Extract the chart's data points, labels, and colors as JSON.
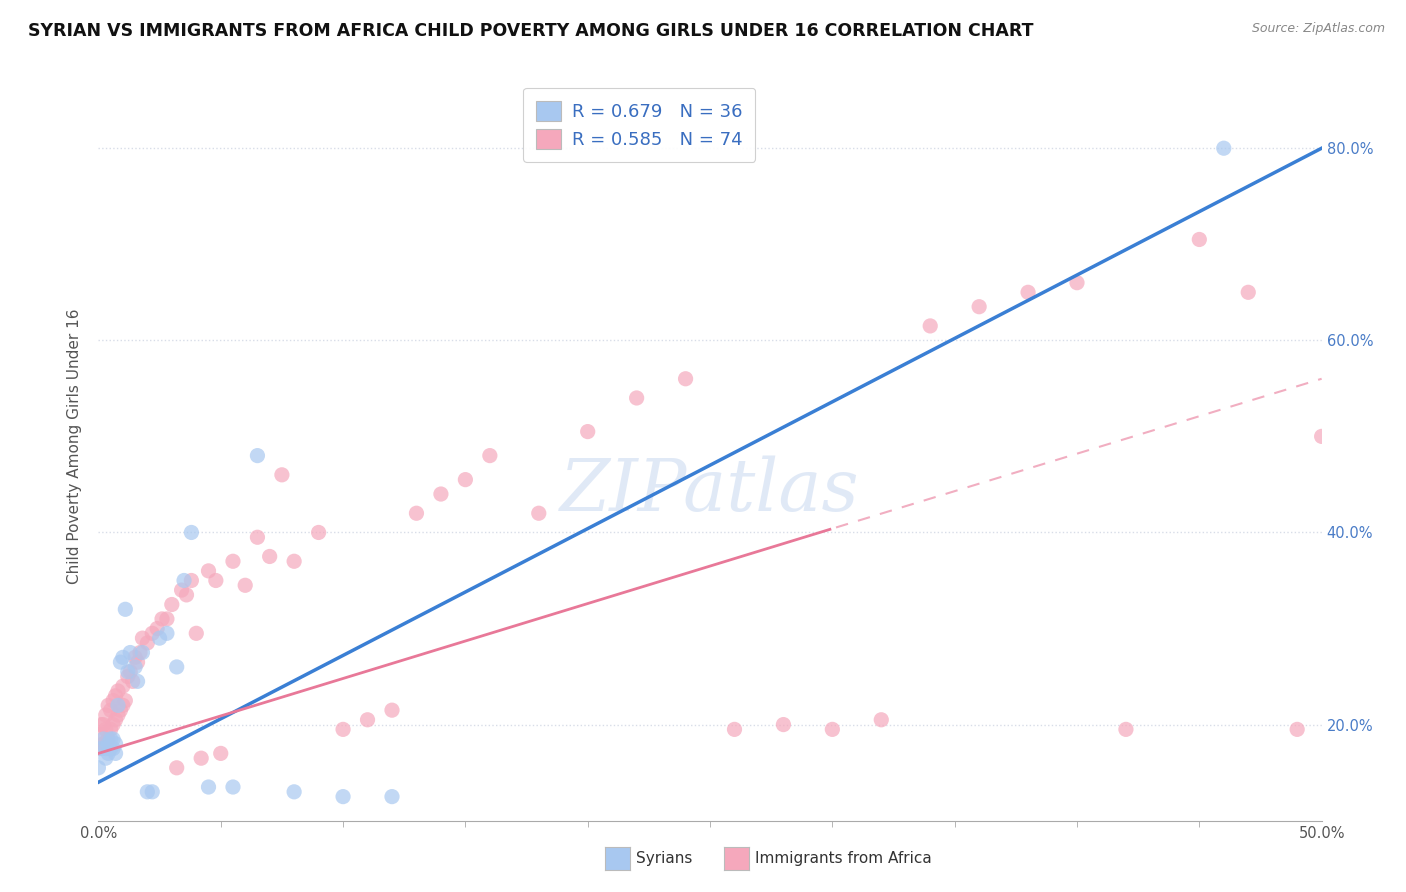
{
  "title": "SYRIAN VS IMMIGRANTS FROM AFRICA CHILD POVERTY AMONG GIRLS UNDER 16 CORRELATION CHART",
  "source": "Source: ZipAtlas.com",
  "ylabel": "Child Poverty Among Girls Under 16",
  "legend_syrian": "R = 0.679   N = 36",
  "legend_africa": "R = 0.585   N = 74",
  "syrian_color": "#a8c8f0",
  "africa_color": "#f5a8bc",
  "syrian_line_color": "#3a7fd4",
  "africa_line_color": "#e87898",
  "watermark_text": "ZIPatlas",
  "background_color": "#ffffff",
  "grid_color": "#d8dde8",
  "title_fontsize": 12.5,
  "axis_label_fontsize": 11,
  "tick_fontsize": 10.5,
  "xlim": [
    0.0,
    0.5
  ],
  "ylim": [
    0.1,
    0.88
  ],
  "syrian_scatter_x": [
    0.0,
    0.001,
    0.002,
    0.003,
    0.003,
    0.004,
    0.004,
    0.005,
    0.005,
    0.006,
    0.006,
    0.007,
    0.007,
    0.008,
    0.009,
    0.01,
    0.011,
    0.012,
    0.013,
    0.015,
    0.016,
    0.018,
    0.02,
    0.022,
    0.025,
    0.028,
    0.032,
    0.035,
    0.038,
    0.045,
    0.055,
    0.065,
    0.08,
    0.1,
    0.12,
    0.46
  ],
  "syrian_scatter_y": [
    0.155,
    0.175,
    0.185,
    0.165,
    0.175,
    0.17,
    0.18,
    0.175,
    0.185,
    0.175,
    0.185,
    0.17,
    0.18,
    0.22,
    0.265,
    0.27,
    0.32,
    0.255,
    0.275,
    0.26,
    0.245,
    0.275,
    0.13,
    0.13,
    0.29,
    0.295,
    0.26,
    0.35,
    0.4,
    0.135,
    0.135,
    0.48,
    0.13,
    0.125,
    0.125,
    0.8
  ],
  "africa_scatter_x": [
    0.0,
    0.001,
    0.001,
    0.002,
    0.002,
    0.003,
    0.003,
    0.004,
    0.004,
    0.005,
    0.005,
    0.006,
    0.006,
    0.007,
    0.007,
    0.008,
    0.008,
    0.009,
    0.01,
    0.01,
    0.011,
    0.012,
    0.013,
    0.014,
    0.015,
    0.016,
    0.017,
    0.018,
    0.02,
    0.022,
    0.024,
    0.026,
    0.028,
    0.03,
    0.032,
    0.034,
    0.036,
    0.038,
    0.04,
    0.042,
    0.045,
    0.048,
    0.05,
    0.055,
    0.06,
    0.065,
    0.07,
    0.075,
    0.08,
    0.09,
    0.1,
    0.11,
    0.12,
    0.13,
    0.14,
    0.15,
    0.16,
    0.18,
    0.2,
    0.22,
    0.24,
    0.26,
    0.28,
    0.3,
    0.32,
    0.34,
    0.36,
    0.38,
    0.4,
    0.42,
    0.45,
    0.47,
    0.49,
    0.5
  ],
  "africa_scatter_y": [
    0.175,
    0.19,
    0.2,
    0.18,
    0.2,
    0.195,
    0.21,
    0.185,
    0.22,
    0.195,
    0.215,
    0.2,
    0.225,
    0.205,
    0.23,
    0.21,
    0.235,
    0.215,
    0.22,
    0.24,
    0.225,
    0.25,
    0.255,
    0.245,
    0.27,
    0.265,
    0.275,
    0.29,
    0.285,
    0.295,
    0.3,
    0.31,
    0.31,
    0.325,
    0.155,
    0.34,
    0.335,
    0.35,
    0.295,
    0.165,
    0.36,
    0.35,
    0.17,
    0.37,
    0.345,
    0.395,
    0.375,
    0.46,
    0.37,
    0.4,
    0.195,
    0.205,
    0.215,
    0.42,
    0.44,
    0.455,
    0.48,
    0.42,
    0.505,
    0.54,
    0.56,
    0.195,
    0.2,
    0.195,
    0.205,
    0.615,
    0.635,
    0.65,
    0.66,
    0.195,
    0.705,
    0.65,
    0.195,
    0.5
  ],
  "africa_data_extent": 0.3,
  "yaxis_labels": [
    "20.0%",
    "40.0%",
    "60.0%",
    "80.0%"
  ],
  "yaxis_values": [
    0.2,
    0.4,
    0.6,
    0.8
  ]
}
